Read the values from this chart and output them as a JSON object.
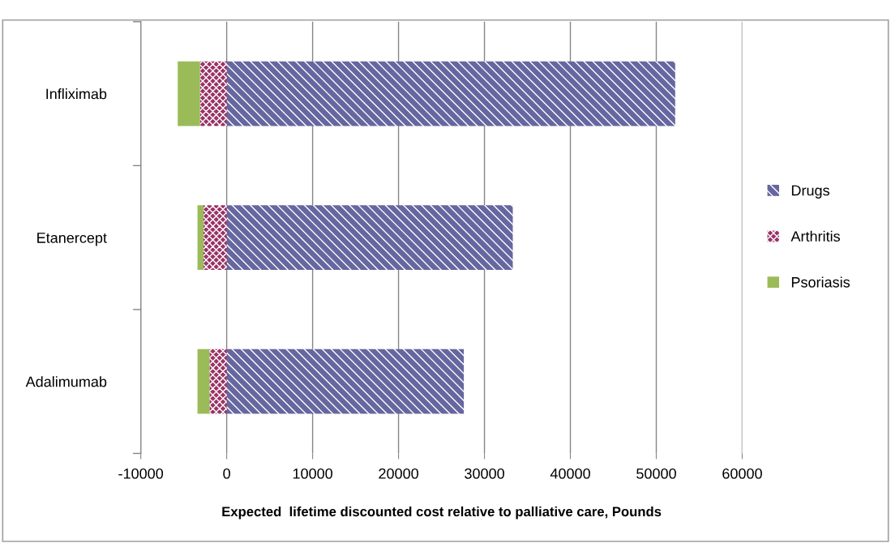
{
  "chart_data": {
    "type": "bar",
    "orientation": "horizontal",
    "stacked": true,
    "xlabel": "Expected  lifetime discounted cost relative to palliative care, Pounds",
    "categories": [
      "Infliximab",
      "Etanercept",
      "Adalimumab"
    ],
    "series": [
      {
        "name": "Drugs",
        "color": "#6666a0",
        "values": [
          52200,
          33300,
          27600
        ]
      },
      {
        "name": "Arthritis",
        "color": "#993366",
        "values": [
          -3100,
          -2700,
          -2000
        ]
      },
      {
        "name": "Psoriasis",
        "color": "#9bbb59",
        "values": [
          -2600,
          -700,
          -1400
        ]
      }
    ],
    "xlim": [
      -10000,
      60000
    ],
    "xticks": [
      -10000,
      0,
      10000,
      20000,
      30000,
      40000,
      50000,
      60000
    ],
    "grid": "x",
    "legend": "right"
  }
}
